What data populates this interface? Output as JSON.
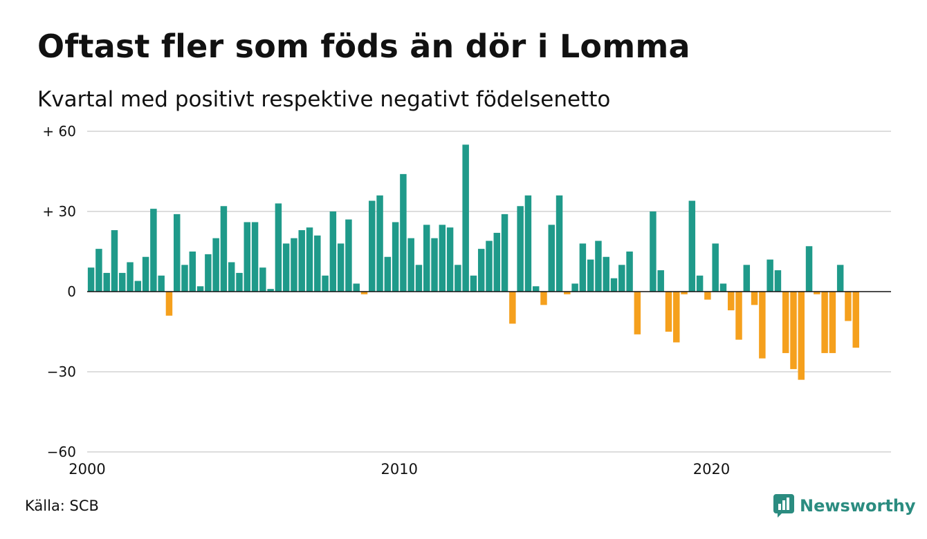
{
  "title": "Oftast fler som föds än dör i Lomma",
  "subtitle": "Kvartal med positivt respektive negativt födelsenetto",
  "source": "Källa: SCB",
  "brand": {
    "name": "Newsworthy",
    "icon": "newsworthy-logo-icon",
    "color": "#2b8c80"
  },
  "chart_data": {
    "type": "bar",
    "title": "Oftast fler som föds än dör i Lomma",
    "subtitle": "Kvartal med positivt respektive negativt födelsenetto",
    "xlabel": "",
    "ylabel": "",
    "ylim": [
      -60,
      60
    ],
    "yticks": [
      {
        "value": 60,
        "label": "+ 60"
      },
      {
        "value": 30,
        "label": "+ 30"
      },
      {
        "value": 0,
        "label": "0"
      },
      {
        "value": -30,
        "label": "−30"
      },
      {
        "value": -60,
        "label": "−60"
      }
    ],
    "xticks": [
      {
        "value": 2000,
        "label": "2000"
      },
      {
        "value": 2010,
        "label": "2010"
      },
      {
        "value": 2020,
        "label": "2020"
      }
    ],
    "xlim": [
      2000,
      2025.75
    ],
    "start_year": 2000,
    "values": [
      9,
      16,
      7,
      23,
      7,
      11,
      4,
      13,
      31,
      6,
      -9,
      29,
      10,
      15,
      2,
      14,
      20,
      32,
      11,
      7,
      26,
      26,
      9,
      1,
      33,
      18,
      20,
      23,
      24,
      21,
      6,
      30,
      18,
      27,
      3,
      -1,
      34,
      36,
      13,
      26,
      44,
      20,
      10,
      25,
      20,
      25,
      24,
      10,
      55,
      6,
      16,
      19,
      22,
      29,
      -12,
      32,
      36,
      2,
      -5,
      25,
      36,
      -1,
      3,
      18,
      12,
      19,
      13,
      5,
      10,
      15,
      -16,
      0,
      30,
      8,
      -15,
      -19,
      -1,
      34,
      6,
      -3,
      18,
      3,
      -7,
      -18,
      10,
      -5,
      -25,
      12,
      8,
      -23,
      -29,
      -33,
      17,
      -1,
      -23,
      -23,
      10,
      -11,
      -21
    ],
    "positive_color": "#1f9a8a",
    "negative_color": "#f5a01d",
    "grid": true,
    "legend": "none"
  }
}
